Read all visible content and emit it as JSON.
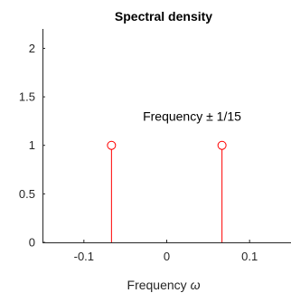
{
  "chart_data": {
    "type": "stem",
    "title": "Spectral density",
    "xlabel_text": "Frequency ",
    "xlabel_symbol": "ω",
    "ylabel": "",
    "xlim": [
      -0.15,
      0.15
    ],
    "ylim": [
      0,
      2.2
    ],
    "xticks": [
      -0.1,
      0,
      0.1
    ],
    "xtick_labels": [
      "-0.1",
      "0",
      "0.1"
    ],
    "yticks": [
      0,
      0.5,
      1,
      1.5,
      2
    ],
    "ytick_labels": [
      "0",
      "0.5",
      "1",
      "1.5",
      "2"
    ],
    "grid": false,
    "series": [
      {
        "x": [
          -0.0667,
          0.0667
        ],
        "y": [
          1,
          1
        ],
        "color": "#ff0000",
        "marker": "circle-open"
      }
    ],
    "annotation": {
      "text": "Frequency ± 1/15",
      "x": 0,
      "y": 1.3
    }
  }
}
